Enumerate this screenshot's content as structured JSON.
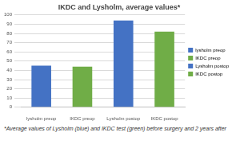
{
  "chart_data": {
    "type": "bar",
    "title": "IKDC and Lysholm, average values*",
    "categories": [
      "lysholm preop",
      "IKDC preop",
      "Lysholm postop",
      "IKDC postop"
    ],
    "values": [
      45,
      44,
      94,
      82
    ],
    "colors": [
      "#4472c4",
      "#70ad47",
      "#4472c4",
      "#70ad47"
    ],
    "ylim": [
      0,
      100
    ],
    "yticks": [
      0,
      10,
      20,
      30,
      40,
      50,
      60,
      70,
      80,
      90,
      100
    ],
    "grid": true,
    "legend": "right",
    "footnote": "*Average values of Lysholm (blue) and IKDC test (green) before surgery and 2 years after"
  }
}
